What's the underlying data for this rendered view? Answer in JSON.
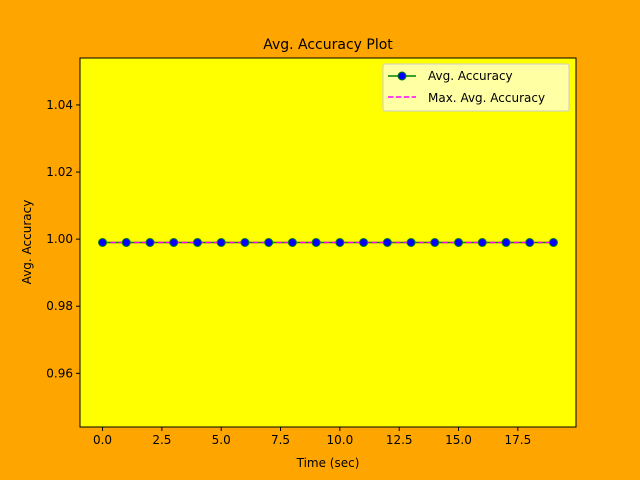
{
  "chart_data": {
    "type": "line",
    "title": "Avg. Accuracy Plot",
    "xlabel": "Time (sec)",
    "ylabel": "Avg. Accuracy",
    "xlim": [
      -0.95,
      19.95
    ],
    "ylim": [
      0.944,
      1.054
    ],
    "xticks": [
      0.0,
      2.5,
      5.0,
      7.5,
      10.0,
      12.5,
      15.0,
      17.5
    ],
    "xtick_labels": [
      "0.0",
      "2.5",
      "5.0",
      "7.5",
      "10.0",
      "12.5",
      "15.0",
      "17.5"
    ],
    "yticks": [
      0.96,
      0.98,
      1.0,
      1.02,
      1.04
    ],
    "ytick_labels": [
      "0.96",
      "0.98",
      "1.00",
      "1.02",
      "1.04"
    ],
    "grid": false,
    "legend_position": "top-right",
    "colors": {
      "figure_bg": "#FFA500",
      "plot_bg": "#FFFF00",
      "line": "#008000",
      "marker_face": "#0000FF",
      "max_line": "#FF00FF"
    },
    "x": [
      0,
      1,
      2,
      3,
      4,
      5,
      6,
      7,
      8,
      9,
      10,
      11,
      12,
      13,
      14,
      15,
      16,
      17,
      18,
      19
    ],
    "series": [
      {
        "name": "Avg. Accuracy",
        "style": "solid-marker",
        "values": [
          0.999,
          0.999,
          0.999,
          0.999,
          0.999,
          0.999,
          0.999,
          0.999,
          0.999,
          0.999,
          0.999,
          0.999,
          0.999,
          0.999,
          0.999,
          0.999,
          0.999,
          0.999,
          0.999,
          0.999
        ]
      },
      {
        "name": "Max. Avg. Accuracy",
        "style": "dashed",
        "values": [
          0.999,
          0.999,
          0.999,
          0.999,
          0.999,
          0.999,
          0.999,
          0.999,
          0.999,
          0.999,
          0.999,
          0.999,
          0.999,
          0.999,
          0.999,
          0.999,
          0.999,
          0.999,
          0.999,
          0.999
        ]
      }
    ]
  }
}
